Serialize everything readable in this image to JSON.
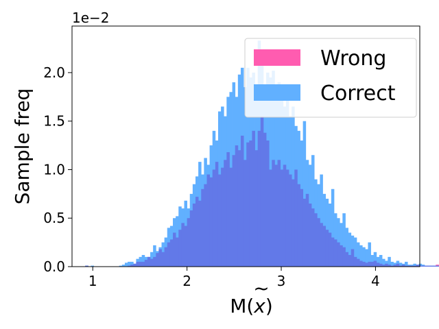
{
  "chart_data": {
    "type": "bar",
    "subtype": "overlaid-histogram",
    "xlabel_base": "M(",
    "xlabel_var": "x",
    "xlabel_tilde": "~",
    "xlabel_close": ")",
    "ylabel": "Sample freq",
    "y_offset_label": "1e−2",
    "xlim": [
      0.78,
      4.47
    ],
    "ylim": [
      0,
      2.48
    ],
    "x_ticks": [
      1,
      2,
      3,
      4
    ],
    "x_tick_labels": [
      "1",
      "2",
      "3",
      "4"
    ],
    "y_ticks": [
      0.0,
      0.5,
      1.0,
      1.5,
      2.0
    ],
    "y_tick_labels": [
      "0.0",
      "0.5",
      "1.0",
      "1.5",
      "2.0"
    ],
    "bin_start": 0.92,
    "bin_width": 0.03,
    "legend_position": "top-right",
    "grid": false,
    "series": [
      {
        "name": "Wrong",
        "color": "#ff5cb0",
        "values": [
          0.01,
          0,
          0,
          0,
          0,
          0,
          0,
          0,
          0,
          0,
          0,
          0,
          0,
          0,
          0,
          0.01,
          0.02,
          0.03,
          0.05,
          0.05,
          0.05,
          0.07,
          0.1,
          0.08,
          0.1,
          0.14,
          0.18,
          0.15,
          0.2,
          0.25,
          0.28,
          0.35,
          0.3,
          0.38,
          0.45,
          0.42,
          0.5,
          0.58,
          0.65,
          0.72,
          0.68,
          0.8,
          0.85,
          0.95,
          0.92,
          1.0,
          1.08,
          0.95,
          1.02,
          1.1,
          1.18,
          1.02,
          1.15,
          1.25,
          1.2,
          1.35,
          1.1,
          1.28,
          1.3,
          1.4,
          1.2,
          1.4,
          1.55,
          1.38,
          1.3,
          1.0,
          1.1,
          1.05,
          1.1,
          1.0,
          1.05,
          1.0,
          0.95,
          0.9,
          1.0,
          0.85,
          0.8,
          0.7,
          0.75,
          0.65,
          0.6,
          0.55,
          0.5,
          0.45,
          0.42,
          0.38,
          0.35,
          0.3,
          0.28,
          0.25,
          0.22,
          0.2,
          0.15,
          0.12,
          0.18,
          0.1,
          0.08,
          0.06,
          0.05,
          0.04,
          0.05,
          0.05,
          0.06,
          0.04,
          0.03,
          0.02,
          0.03,
          0.02,
          0.01,
          0.02,
          0.03,
          0.01,
          0.02,
          0.01,
          0.01,
          0.01,
          0.01,
          0.02,
          0.01,
          0.01,
          0.01,
          0.01,
          0.01,
          0.01,
          0.02,
          0.01
        ]
      },
      {
        "name": "Correct",
        "color": "#61b0ff",
        "values": [
          0.01,
          0,
          0.01,
          0,
          0,
          0,
          0,
          0,
          0,
          0,
          0,
          0,
          0.01,
          0.02,
          0.04,
          0.05,
          0.05,
          0.03,
          0.08,
          0.1,
          0.12,
          0.1,
          0.1,
          0.15,
          0.22,
          0.16,
          0.2,
          0.25,
          0.3,
          0.4,
          0.42,
          0.5,
          0.52,
          0.62,
          0.6,
          0.68,
          0.6,
          0.75,
          0.85,
          0.93,
          1.08,
          0.95,
          1.12,
          1.05,
          1.25,
          1.4,
          1.3,
          1.6,
          1.65,
          1.55,
          1.75,
          1.8,
          1.9,
          1.75,
          1.98,
          2.05,
          1.85,
          2.05,
          1.95,
          2.0,
          1.85,
          2.33,
          2.15,
          1.75,
          2.0,
          1.95,
          2.02,
          1.85,
          1.9,
          1.8,
          1.65,
          1.75,
          1.55,
          1.65,
          1.45,
          1.4,
          1.3,
          1.5,
          1.1,
          1.05,
          1.15,
          0.9,
          0.85,
          0.95,
          0.75,
          0.7,
          0.65,
          0.8,
          0.55,
          0.5,
          0.45,
          0.55,
          0.4,
          0.35,
          0.32,
          0.3,
          0.25,
          0.22,
          0.2,
          0.18,
          0.25,
          0.12,
          0.15,
          0.1,
          0.12,
          0.08,
          0.06,
          0.1,
          0.05,
          0.04,
          0.06,
          0.04,
          0.03,
          0.05,
          0.02,
          0.02,
          0.03,
          0.02,
          0.03,
          0.02,
          0.01,
          0.01,
          0.01,
          0.01,
          0.01,
          0.01
        ]
      }
    ]
  }
}
